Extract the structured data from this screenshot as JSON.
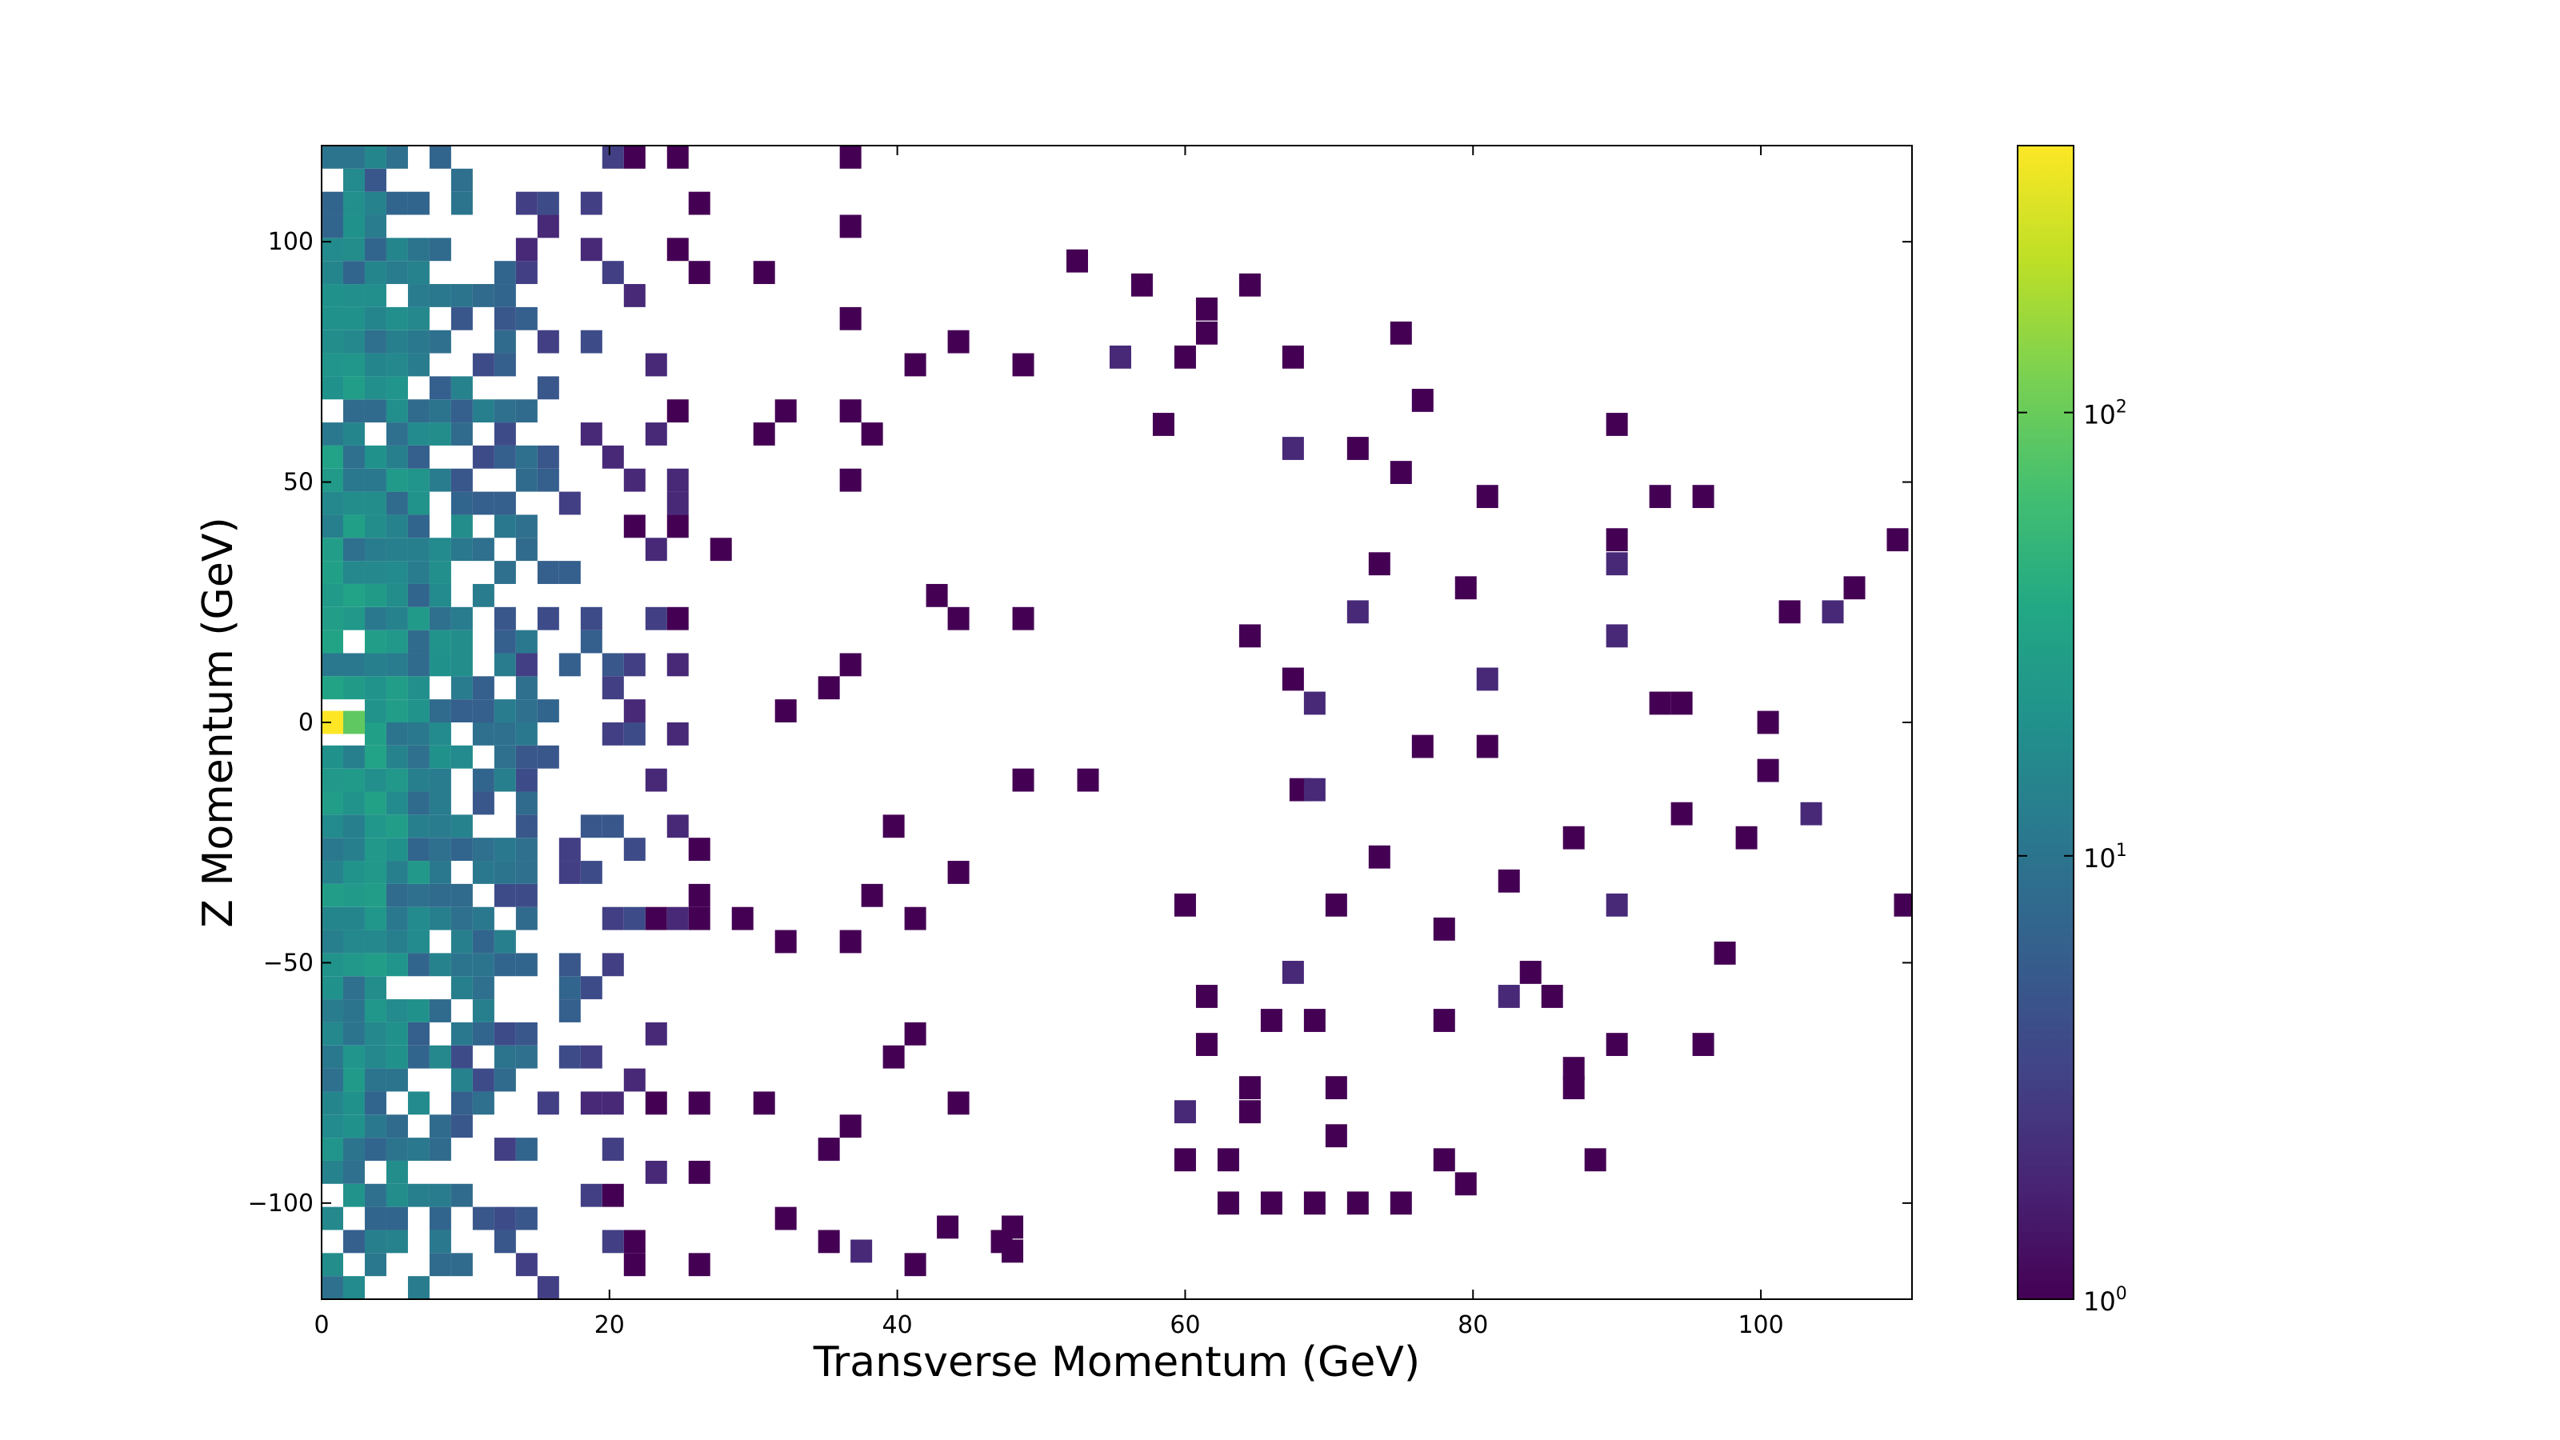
{
  "chart_data": {
    "type": "heatmap",
    "title": "",
    "xlabel": "Transverse Momentum (GeV)",
    "ylabel": "Z Momentum (GeV)",
    "xlim": [
      0,
      110.5
    ],
    "ylim": [
      -120,
      120
    ],
    "bin_width_x": 1.5,
    "bin_width_y": 4.8,
    "x_ticks": [
      0,
      20,
      40,
      60,
      80,
      100
    ],
    "x_tick_labels": [
      "0",
      "20",
      "40",
      "60",
      "80",
      "100"
    ],
    "y_ticks": [
      -100,
      -50,
      0,
      50,
      100
    ],
    "y_tick_labels": [
      "−100",
      "−50",
      "0",
      "50",
      "100"
    ],
    "grid": false,
    "colormap": "viridis",
    "color_scale": "log",
    "colorbar_range": [
      1,
      400
    ],
    "colorbar_ticks": [
      {
        "value": 1,
        "base": "10",
        "exp": "0"
      },
      {
        "value": 10,
        "base": "10",
        "exp": "1"
      },
      {
        "value": 100,
        "base": "10",
        "exp": "2"
      }
    ],
    "peak_bins": [
      {
        "x": 0.75,
        "y": 0,
        "count": 400
      },
      {
        "x": 2.25,
        "y": 0,
        "count": 90
      }
    ],
    "bins": [
      {
        "x": 52.5,
        "y": 96,
        "count": 1
      },
      {
        "x": 57.0,
        "y": 91,
        "count": 1
      },
      {
        "x": 61.5,
        "y": 86,
        "count": 1
      },
      {
        "x": 64.5,
        "y": 91,
        "count": 1
      },
      {
        "x": 67.5,
        "y": 76,
        "count": 1
      },
      {
        "x": 75.0,
        "y": 81,
        "count": 1
      },
      {
        "x": 61.5,
        "y": 81,
        "count": 1
      },
      {
        "x": 55.5,
        "y": 76,
        "count": 2
      },
      {
        "x": 60.0,
        "y": 76,
        "count": 1
      },
      {
        "x": 58.5,
        "y": 62,
        "count": 1
      },
      {
        "x": 67.5,
        "y": 57,
        "count": 2
      },
      {
        "x": 72.0,
        "y": 57,
        "count": 1
      },
      {
        "x": 76.5,
        "y": 67,
        "count": 1
      },
      {
        "x": 90.0,
        "y": 62,
        "count": 1
      },
      {
        "x": 75.0,
        "y": 52,
        "count": 1
      },
      {
        "x": 81.0,
        "y": 47,
        "count": 1
      },
      {
        "x": 93.0,
        "y": 47,
        "count": 1
      },
      {
        "x": 96.0,
        "y": 47,
        "count": 1
      },
      {
        "x": 90.0,
        "y": 38,
        "count": 1
      },
      {
        "x": 109.5,
        "y": 38,
        "count": 1
      },
      {
        "x": 90.0,
        "y": 33,
        "count": 2
      },
      {
        "x": 79.5,
        "y": 28,
        "count": 1
      },
      {
        "x": 73.5,
        "y": 33,
        "count": 1
      },
      {
        "x": 106.5,
        "y": 28,
        "count": 1
      },
      {
        "x": 102.0,
        "y": 23,
        "count": 1
      },
      {
        "x": 105.0,
        "y": 23,
        "count": 2
      },
      {
        "x": 90.0,
        "y": 18,
        "count": 2
      },
      {
        "x": 72.0,
        "y": 23,
        "count": 2
      },
      {
        "x": 64.5,
        "y": 18,
        "count": 1
      },
      {
        "x": 67.5,
        "y": 9,
        "count": 1
      },
      {
        "x": 69.0,
        "y": 4,
        "count": 2
      },
      {
        "x": 81.0,
        "y": 9,
        "count": 2
      },
      {
        "x": 93.0,
        "y": 4,
        "count": 1
      },
      {
        "x": 94.5,
        "y": 4,
        "count": 1
      },
      {
        "x": 100.5,
        "y": 0,
        "count": 1
      },
      {
        "x": 76.5,
        "y": -5,
        "count": 1
      },
      {
        "x": 81.0,
        "y": -5,
        "count": 1
      },
      {
        "x": 100.5,
        "y": -10,
        "count": 1
      },
      {
        "x": 68.0,
        "y": -14,
        "count": 1
      },
      {
        "x": 69.0,
        "y": -14,
        "count": 2
      },
      {
        "x": 103.5,
        "y": -19,
        "count": 2
      },
      {
        "x": 94.5,
        "y": -19,
        "count": 1
      },
      {
        "x": 87.0,
        "y": -24,
        "count": 1
      },
      {
        "x": 99.0,
        "y": -24,
        "count": 1
      },
      {
        "x": 73.5,
        "y": -28,
        "count": 1
      },
      {
        "x": 82.5,
        "y": -33,
        "count": 1
      },
      {
        "x": 90.0,
        "y": -38,
        "count": 2
      },
      {
        "x": 70.5,
        "y": -38,
        "count": 1
      },
      {
        "x": 60.0,
        "y": -38,
        "count": 1
      },
      {
        "x": 110.0,
        "y": -38,
        "count": 1
      },
      {
        "x": 78.0,
        "y": -43,
        "count": 1
      },
      {
        "x": 97.5,
        "y": -48,
        "count": 1
      },
      {
        "x": 67.5,
        "y": -52,
        "count": 2
      },
      {
        "x": 61.5,
        "y": -57,
        "count": 1
      },
      {
        "x": 82.5,
        "y": -57,
        "count": 2
      },
      {
        "x": 84.0,
        "y": -52,
        "count": 1
      },
      {
        "x": 85.5,
        "y": -57,
        "count": 1
      },
      {
        "x": 78.0,
        "y": -62,
        "count": 1
      },
      {
        "x": 66.0,
        "y": -62,
        "count": 1
      },
      {
        "x": 69.0,
        "y": -62,
        "count": 1
      },
      {
        "x": 90.0,
        "y": -67,
        "count": 1
      },
      {
        "x": 96.0,
        "y": -67,
        "count": 1
      },
      {
        "x": 87.0,
        "y": -72,
        "count": 1
      },
      {
        "x": 87.0,
        "y": -76,
        "count": 1
      },
      {
        "x": 61.5,
        "y": -67,
        "count": 1
      },
      {
        "x": 64.5,
        "y": -76,
        "count": 1
      },
      {
        "x": 70.5,
        "y": -76,
        "count": 1
      },
      {
        "x": 60.0,
        "y": -81,
        "count": 2
      },
      {
        "x": 64.5,
        "y": -81,
        "count": 1
      },
      {
        "x": 70.5,
        "y": -86,
        "count": 1
      },
      {
        "x": 78.0,
        "y": -91,
        "count": 1
      },
      {
        "x": 79.5,
        "y": -96,
        "count": 1
      },
      {
        "x": 88.5,
        "y": -91,
        "count": 1
      },
      {
        "x": 75.0,
        "y": -100,
        "count": 1
      },
      {
        "x": 60.0,
        "y": -91,
        "count": 1
      },
      {
        "x": 63.0,
        "y": -91,
        "count": 1
      },
      {
        "x": 63.0,
        "y": -100,
        "count": 1
      },
      {
        "x": 66.0,
        "y": -100,
        "count": 1
      },
      {
        "x": 69.0,
        "y": -100,
        "count": 1
      },
      {
        "x": 72.0,
        "y": -100,
        "count": 1
      },
      {
        "x": 48.0,
        "y": -110,
        "count": 1
      },
      {
        "x": 48.0,
        "y": -105,
        "count": 1
      },
      {
        "x": 43.5,
        "y": -105,
        "count": 1
      },
      {
        "x": 37.5,
        "y": -110,
        "count": 2
      }
    ]
  }
}
